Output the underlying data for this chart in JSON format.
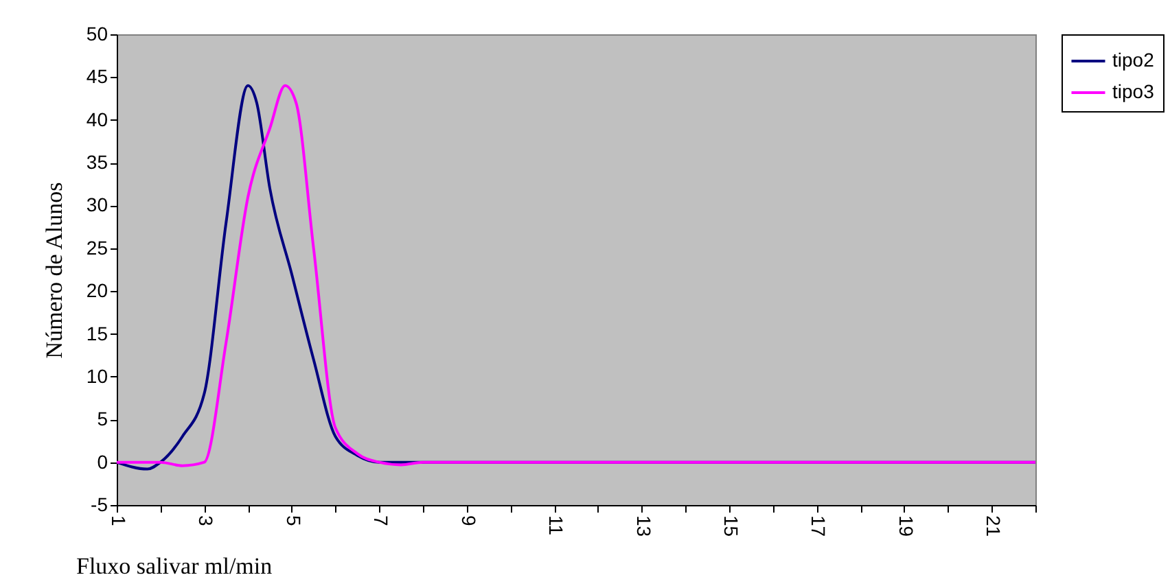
{
  "chart_data": {
    "type": "line",
    "xlabel": "Fluxo salivar ml/min",
    "ylabel": "Número de Alunos",
    "xlim": [
      1,
      22
    ],
    "xticks": [
      1,
      {
        "value": 2,
        "label": null
      },
      3,
      {
        "value": 4,
        "label": null
      },
      5,
      {
        "value": 6,
        "label": null
      },
      7,
      {
        "value": 8,
        "label": null
      },
      9,
      {
        "value": 10,
        "label": null
      },
      11,
      {
        "value": 12,
        "label": null
      },
      13,
      {
        "value": 14,
        "label": null
      },
      15,
      {
        "value": 16,
        "label": null
      },
      17,
      {
        "value": 18,
        "label": null
      },
      19,
      {
        "value": 20,
        "label": null
      },
      21,
      {
        "value": 22,
        "label": null
      }
    ],
    "ylim": [
      -5,
      50
    ],
    "yticks": [
      -5,
      0,
      5,
      10,
      15,
      20,
      25,
      30,
      35,
      40,
      45,
      50
    ],
    "grid": false,
    "legend": "right",
    "marker": "none",
    "line_style": "solid",
    "series": [
      {
        "name": "tipo2",
        "color": "#000080",
        "x": [
          1,
          1.7,
          2,
          2.5,
          3,
          3.5,
          4,
          4.2,
          4.5,
          5,
          5.5,
          6,
          6.5,
          7,
          22
        ],
        "values": [
          0,
          -0.8,
          0,
          3,
          8,
          28,
          44,
          42,
          32,
          22,
          12,
          3,
          0.8,
          0,
          0
        ]
      },
      {
        "name": "tipo3",
        "color": "#ff00ff",
        "x": [
          1,
          2,
          2.5,
          3,
          3.5,
          4,
          4.5,
          4.85,
          5.1,
          5.5,
          6,
          6.5,
          7,
          7.5,
          8,
          22
        ],
        "values": [
          0,
          0,
          -0.4,
          0,
          14,
          31,
          39,
          44,
          42,
          25,
          4,
          1,
          0,
          -0.3,
          0,
          0
        ]
      }
    ]
  }
}
